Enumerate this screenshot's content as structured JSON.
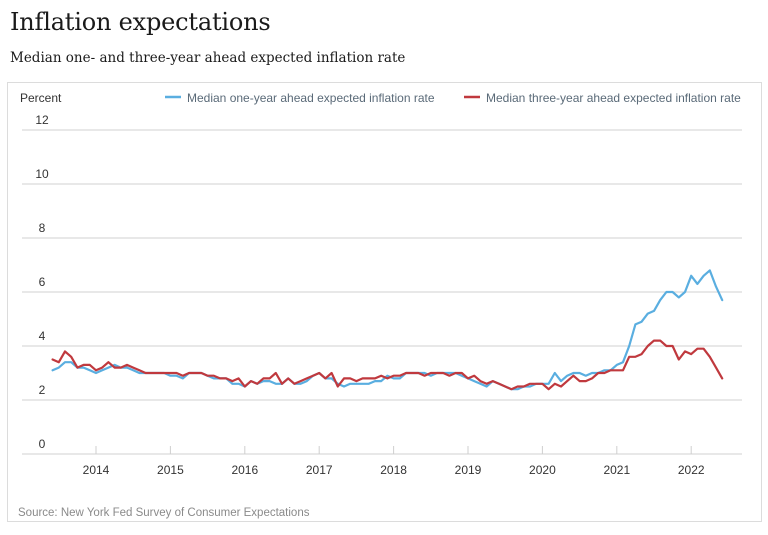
{
  "header": {
    "title": "Inflation expectations",
    "subtitle": "Median one- and three-year ahead expected inflation rate"
  },
  "source": "Source: New York Fed Survey of Consumer Expectations",
  "chart_data": {
    "type": "line",
    "title": "Inflation expectations",
    "subtitle": "Median one- and three-year ahead expected inflation rate",
    "ylabel": "Percent",
    "xlabel": "",
    "ylim": [
      0,
      12
    ],
    "yticks": [
      0,
      2,
      4,
      6,
      8,
      10,
      12
    ],
    "xlim": [
      "2013-05",
      "2022-09"
    ],
    "xticks": [
      "2014",
      "2015",
      "2016",
      "2017",
      "2018",
      "2019",
      "2020",
      "2021",
      "2022"
    ],
    "grid": true,
    "legend_position": "top",
    "x_start": "2013-06",
    "x_frequency": "monthly",
    "series": [
      {
        "name": "Median one-year ahead expected inflation rate",
        "color": "#5aaee0",
        "values": [
          3.1,
          3.2,
          3.4,
          3.4,
          3.2,
          3.2,
          3.1,
          3.0,
          3.1,
          3.2,
          3.3,
          3.2,
          3.2,
          3.1,
          3.0,
          3.0,
          3.0,
          3.0,
          3.0,
          2.9,
          2.9,
          2.8,
          3.0,
          3.0,
          3.0,
          2.9,
          2.8,
          2.8,
          2.8,
          2.6,
          2.6,
          2.5,
          2.7,
          2.6,
          2.7,
          2.7,
          2.6,
          2.6,
          2.8,
          2.6,
          2.6,
          2.7,
          2.9,
          3.0,
          2.8,
          2.8,
          2.6,
          2.5,
          2.6,
          2.6,
          2.6,
          2.6,
          2.7,
          2.7,
          2.9,
          2.8,
          2.8,
          3.0,
          3.0,
          3.0,
          3.0,
          2.9,
          3.0,
          3.0,
          3.0,
          3.0,
          2.9,
          2.8,
          2.7,
          2.6,
          2.5,
          2.7,
          2.6,
          2.5,
          2.4,
          2.4,
          2.5,
          2.5,
          2.6,
          2.6,
          2.6,
          3.0,
          2.7,
          2.9,
          3.0,
          3.0,
          2.9,
          3.0,
          3.0,
          3.1,
          3.1,
          3.3,
          3.4,
          4.0,
          4.8,
          4.9,
          5.2,
          5.3,
          5.7,
          6.0,
          6.0,
          5.8,
          6.0,
          6.6,
          6.3,
          6.6,
          6.8,
          6.2,
          5.7
        ]
      },
      {
        "name": "Median three-year ahead expected inflation rate",
        "color": "#c0393e",
        "values": [
          3.5,
          3.4,
          3.8,
          3.6,
          3.2,
          3.3,
          3.3,
          3.1,
          3.2,
          3.4,
          3.2,
          3.2,
          3.3,
          3.2,
          3.1,
          3.0,
          3.0,
          3.0,
          3.0,
          3.0,
          3.0,
          2.9,
          3.0,
          3.0,
          3.0,
          2.9,
          2.9,
          2.8,
          2.8,
          2.7,
          2.8,
          2.5,
          2.7,
          2.6,
          2.8,
          2.8,
          3.0,
          2.6,
          2.8,
          2.6,
          2.7,
          2.8,
          2.9,
          3.0,
          2.8,
          3.0,
          2.5,
          2.8,
          2.8,
          2.7,
          2.8,
          2.8,
          2.8,
          2.9,
          2.8,
          2.9,
          2.9,
          3.0,
          3.0,
          3.0,
          2.9,
          3.0,
          3.0,
          3.0,
          2.9,
          3.0,
          3.0,
          2.8,
          2.9,
          2.7,
          2.6,
          2.7,
          2.6,
          2.5,
          2.4,
          2.5,
          2.5,
          2.6,
          2.6,
          2.6,
          2.4,
          2.6,
          2.5,
          2.7,
          2.9,
          2.7,
          2.7,
          2.8,
          3.0,
          3.0,
          3.1,
          3.1,
          3.1,
          3.6,
          3.6,
          3.7,
          4.0,
          4.2,
          4.2,
          4.0,
          4.0,
          3.5,
          3.8,
          3.7,
          3.9,
          3.9,
          3.6,
          3.2,
          2.8
        ]
      }
    ]
  }
}
